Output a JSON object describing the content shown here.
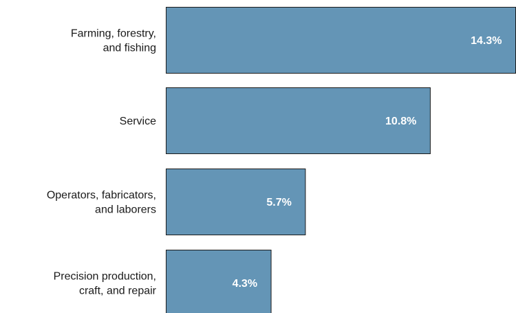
{
  "chart_data": {
    "type": "bar",
    "orientation": "horizontal",
    "categories": [
      [
        "Farming, forestry,",
        "and fishing"
      ],
      [
        "Service"
      ],
      [
        "Operators, fabricators,",
        "and laborers"
      ],
      [
        "Precision production,",
        "craft, and repair"
      ]
    ],
    "values": [
      14.3,
      10.8,
      5.7,
      4.3
    ],
    "value_labels": [
      "14.3%",
      "10.8%",
      "5.7%",
      "4.3%"
    ],
    "value_unit": "%",
    "xlim": [
      0,
      14.3
    ],
    "grid": false,
    "legend": "none",
    "bar_color": "#6495b6",
    "bar_edge_color": "#1a1a1a",
    "value_label_color": "#ffffff"
  }
}
